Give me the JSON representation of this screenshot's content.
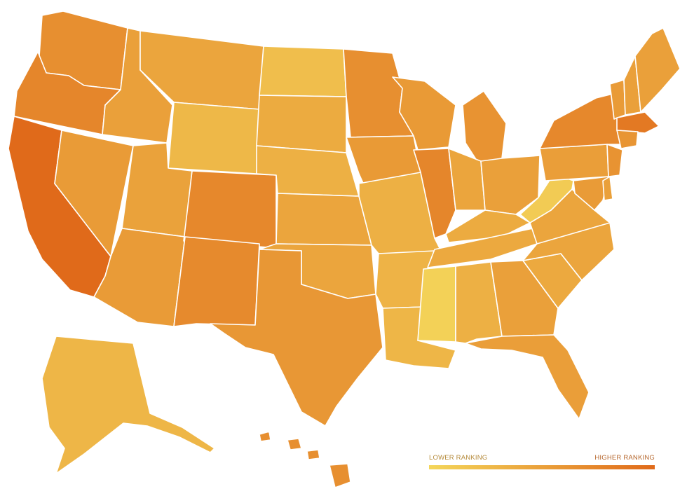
{
  "map": {
    "type": "choropleth",
    "region": "United States",
    "color_scale": {
      "low": "#f4d65a",
      "high": "#e06a1a"
    }
  },
  "legend": {
    "low_label": "LOWER RANKING",
    "high_label": "HIGHER RANKING"
  },
  "states": [
    {
      "id": "WA",
      "level": 0.66
    },
    {
      "id": "OR",
      "level": 0.74
    },
    {
      "id": "CA",
      "level": 1.0
    },
    {
      "id": "NV",
      "level": 0.55
    },
    {
      "id": "ID",
      "level": 0.5
    },
    {
      "id": "MT",
      "level": 0.45
    },
    {
      "id": "WY",
      "level": 0.28
    },
    {
      "id": "UT",
      "level": 0.48
    },
    {
      "id": "AZ",
      "level": 0.55
    },
    {
      "id": "CO",
      "level": 0.72
    },
    {
      "id": "NM",
      "level": 0.7
    },
    {
      "id": "ND",
      "level": 0.22
    },
    {
      "id": "SD",
      "level": 0.4
    },
    {
      "id": "NE",
      "level": 0.35
    },
    {
      "id": "KS",
      "level": 0.45
    },
    {
      "id": "OK",
      "level": 0.45
    },
    {
      "id": "TX",
      "level": 0.58
    },
    {
      "id": "MN",
      "level": 0.66
    },
    {
      "id": "IA",
      "level": 0.56
    },
    {
      "id": "MO",
      "level": 0.35
    },
    {
      "id": "AR",
      "level": 0.32
    },
    {
      "id": "LA",
      "level": 0.3
    },
    {
      "id": "WI",
      "level": 0.56
    },
    {
      "id": "IL",
      "level": 0.74
    },
    {
      "id": "MI",
      "level": 0.62
    },
    {
      "id": "IN",
      "level": 0.45
    },
    {
      "id": "OH",
      "level": 0.5
    },
    {
      "id": "KY",
      "level": 0.4
    },
    {
      "id": "TN",
      "level": 0.42
    },
    {
      "id": "MS",
      "level": 0.05
    },
    {
      "id": "AL",
      "level": 0.35
    },
    {
      "id": "GA",
      "level": 0.5
    },
    {
      "id": "FL",
      "level": 0.52
    },
    {
      "id": "SC",
      "level": 0.42
    },
    {
      "id": "NC",
      "level": 0.45
    },
    {
      "id": "VA",
      "level": 0.45
    },
    {
      "id": "WV",
      "level": 0.1
    },
    {
      "id": "PA",
      "level": 0.52
    },
    {
      "id": "NY",
      "level": 0.72
    },
    {
      "id": "VT",
      "level": 0.55
    },
    {
      "id": "NH",
      "level": 0.5
    },
    {
      "id": "ME",
      "level": 0.5
    },
    {
      "id": "MA",
      "level": 0.86
    },
    {
      "id": "CT",
      "level": 0.6
    },
    {
      "id": "NJ",
      "level": 0.62
    },
    {
      "id": "MD",
      "level": 0.55
    },
    {
      "id": "DE",
      "level": 0.5
    },
    {
      "id": "AK",
      "level": 0.3
    },
    {
      "id": "HI",
      "level": 0.66
    }
  ]
}
